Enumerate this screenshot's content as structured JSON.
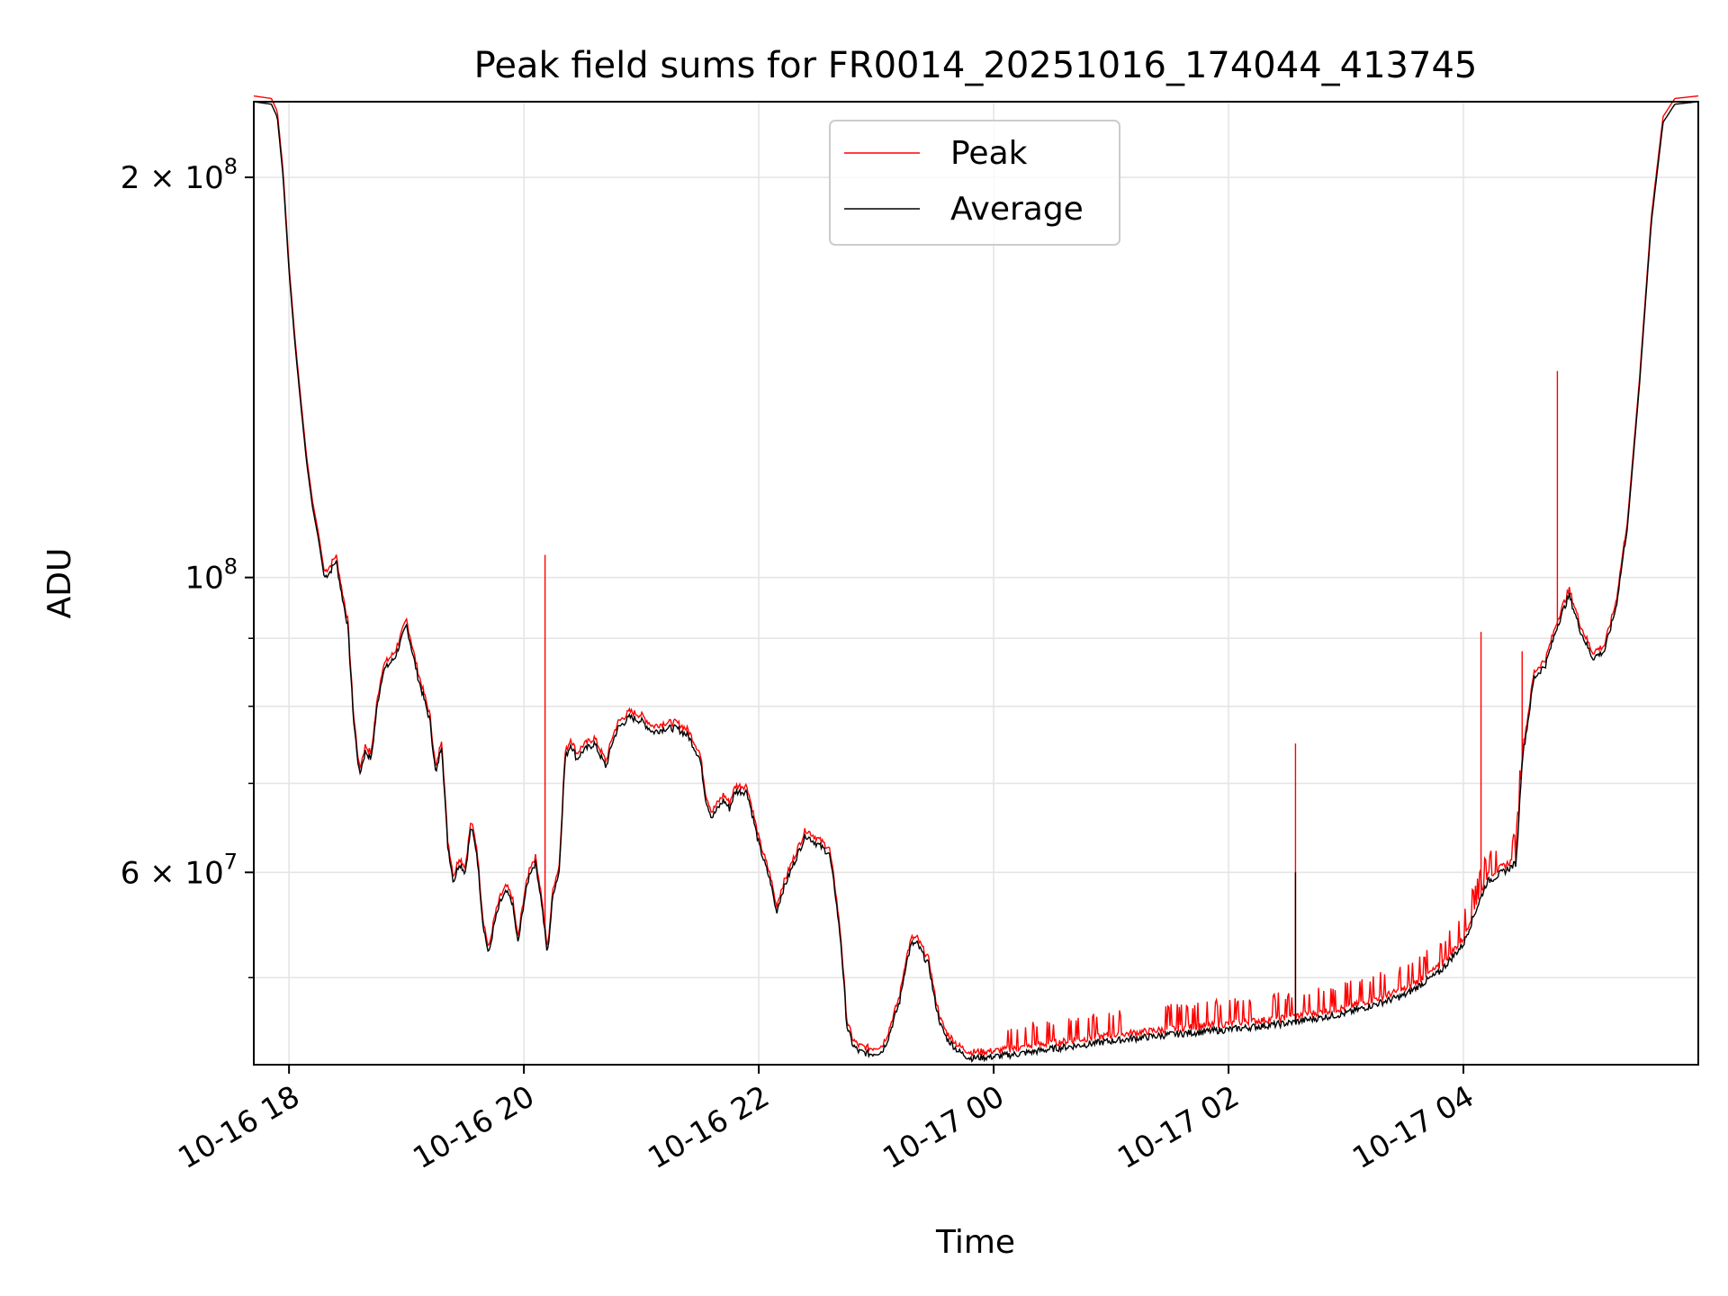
{
  "chart_data": {
    "type": "line",
    "title": "Peak field sums for FR0014_20251016_174044_413745",
    "xlabel": "Time",
    "ylabel": "ADU",
    "yscale": "log",
    "grid": true,
    "legend_position": "top-center",
    "xlim_hours": [
      -0.3,
      12.0
    ],
    "ylim": [
      43000000,
      228000000
    ],
    "x_ticks": [
      {
        "hour": 0,
        "label": "10-16 18"
      },
      {
        "hour": 2,
        "label": "10-16 20"
      },
      {
        "hour": 4,
        "label": "10-16 22"
      },
      {
        "hour": 6,
        "label": "10-17 00"
      },
      {
        "hour": 8,
        "label": "10-17 02"
      },
      {
        "hour": 10,
        "label": "10-17 04"
      }
    ],
    "y_major_ticks": [
      {
        "value": 60000000,
        "mantissa": "6",
        "label_tail": "10",
        "exp": "7"
      },
      {
        "value": 100000000,
        "mantissa": "",
        "label_tail": "10",
        "exp": "8"
      },
      {
        "value": 200000000,
        "mantissa": "2",
        "label_tail": "10",
        "exp": "8"
      }
    ],
    "y_minor_ticks": [
      50000000,
      70000000,
      80000000,
      90000000
    ],
    "series": [
      {
        "name": "Peak",
        "color": "#ff0000",
        "base_offset": 1.01,
        "spikes": [
          {
            "hour": 2.18,
            "value": 104000000
          },
          {
            "hour": 8.57,
            "value": 75000000
          },
          {
            "hour": 10.15,
            "value": 91000000
          },
          {
            "hour": 10.5,
            "value": 88000000
          },
          {
            "hour": 10.8,
            "value": 143000000
          }
        ]
      },
      {
        "name": "Average",
        "color": "#000000",
        "base_offset": 1.0,
        "spikes": [
          {
            "hour": 8.57,
            "value": 60000000
          }
        ]
      }
    ],
    "profile": [
      [
        -0.3,
        228000000
      ],
      [
        -0.15,
        227000000
      ],
      [
        -0.1,
        222000000
      ],
      [
        -0.05,
        200000000
      ],
      [
        0.0,
        170000000
      ],
      [
        0.05,
        150000000
      ],
      [
        0.1,
        135000000
      ],
      [
        0.15,
        122000000
      ],
      [
        0.2,
        113000000
      ],
      [
        0.25,
        107000000
      ],
      [
        0.3,
        100000000
      ],
      [
        0.35,
        101000000
      ],
      [
        0.4,
        103000000
      ],
      [
        0.45,
        97000000
      ],
      [
        0.5,
        92000000
      ],
      [
        0.55,
        78000000
      ],
      [
        0.6,
        71000000
      ],
      [
        0.65,
        74000000
      ],
      [
        0.7,
        73000000
      ],
      [
        0.75,
        80000000
      ],
      [
        0.8,
        85000000
      ],
      [
        0.9,
        87000000
      ],
      [
        1.0,
        92000000
      ],
      [
        1.1,
        84000000
      ],
      [
        1.2,
        78000000
      ],
      [
        1.25,
        71000000
      ],
      [
        1.3,
        75000000
      ],
      [
        1.35,
        63000000
      ],
      [
        1.4,
        59000000
      ],
      [
        1.45,
        61000000
      ],
      [
        1.5,
        60000000
      ],
      [
        1.55,
        65000000
      ],
      [
        1.6,
        62000000
      ],
      [
        1.65,
        55000000
      ],
      [
        1.7,
        52000000
      ],
      [
        1.75,
        55000000
      ],
      [
        1.8,
        57000000
      ],
      [
        1.85,
        58000000
      ],
      [
        1.9,
        57000000
      ],
      [
        1.95,
        53000000
      ],
      [
        2.0,
        57000000
      ],
      [
        2.05,
        60000000
      ],
      [
        2.1,
        61000000
      ],
      [
        2.15,
        57000000
      ],
      [
        2.2,
        52000000
      ],
      [
        2.25,
        58000000
      ],
      [
        2.3,
        60000000
      ],
      [
        2.35,
        73000000
      ],
      [
        2.4,
        75000000
      ],
      [
        2.45,
        73000000
      ],
      [
        2.5,
        74000000
      ],
      [
        2.55,
        74500000
      ],
      [
        2.6,
        75000000
      ],
      [
        2.7,
        72000000
      ],
      [
        2.75,
        75000000
      ],
      [
        2.8,
        77000000
      ],
      [
        2.9,
        78500000
      ],
      [
        3.0,
        78000000
      ],
      [
        3.1,
        76500000
      ],
      [
        3.2,
        77000000
      ],
      [
        3.3,
        77000000
      ],
      [
        3.4,
        76000000
      ],
      [
        3.5,
        73000000
      ],
      [
        3.55,
        68000000
      ],
      [
        3.6,
        66000000
      ],
      [
        3.7,
        68000000
      ],
      [
        3.75,
        67000000
      ],
      [
        3.8,
        69000000
      ],
      [
        3.9,
        69000000
      ],
      [
        3.95,
        66000000
      ],
      [
        4.0,
        63000000
      ],
      [
        4.1,
        59000000
      ],
      [
        4.15,
        56000000
      ],
      [
        4.2,
        58000000
      ],
      [
        4.3,
        61000000
      ],
      [
        4.4,
        64000000
      ],
      [
        4.5,
        63000000
      ],
      [
        4.6,
        62000000
      ],
      [
        4.65,
        58000000
      ],
      [
        4.7,
        53000000
      ],
      [
        4.75,
        46000000
      ],
      [
        4.8,
        44500000
      ],
      [
        4.85,
        44000000
      ],
      [
        4.95,
        43800000
      ],
      [
        5.05,
        44000000
      ],
      [
        5.1,
        45000000
      ],
      [
        5.2,
        48000000
      ],
      [
        5.25,
        51000000
      ],
      [
        5.3,
        53000000
      ],
      [
        5.35,
        53000000
      ],
      [
        5.4,
        52000000
      ],
      [
        5.45,
        51000000
      ],
      [
        5.5,
        48000000
      ],
      [
        5.55,
        46000000
      ],
      [
        5.6,
        45000000
      ],
      [
        5.7,
        44000000
      ],
      [
        5.8,
        43500000
      ],
      [
        6.0,
        43600000
      ],
      [
        6.2,
        43800000
      ],
      [
        6.5,
        44200000
      ],
      [
        7.0,
        44800000
      ],
      [
        7.5,
        45300000
      ],
      [
        8.0,
        45700000
      ],
      [
        8.5,
        46200000
      ],
      [
        9.0,
        47000000
      ],
      [
        9.5,
        48500000
      ],
      [
        9.8,
        50500000
      ],
      [
        10.0,
        53000000
      ],
      [
        10.1,
        56000000
      ],
      [
        10.2,
        59000000
      ],
      [
        10.4,
        60500000
      ],
      [
        10.45,
        61000000
      ],
      [
        10.5,
        73000000
      ],
      [
        10.55,
        78000000
      ],
      [
        10.6,
        84000000
      ],
      [
        10.7,
        86000000
      ],
      [
        10.8,
        92000000
      ],
      [
        10.9,
        97000000
      ],
      [
        11.0,
        91000000
      ],
      [
        11.1,
        87000000
      ],
      [
        11.2,
        88000000
      ],
      [
        11.3,
        95000000
      ],
      [
        11.4,
        110000000
      ],
      [
        11.5,
        140000000
      ],
      [
        11.6,
        185000000
      ],
      [
        11.7,
        220000000
      ],
      [
        11.8,
        227000000
      ],
      [
        12.0,
        228000000
      ]
    ]
  }
}
